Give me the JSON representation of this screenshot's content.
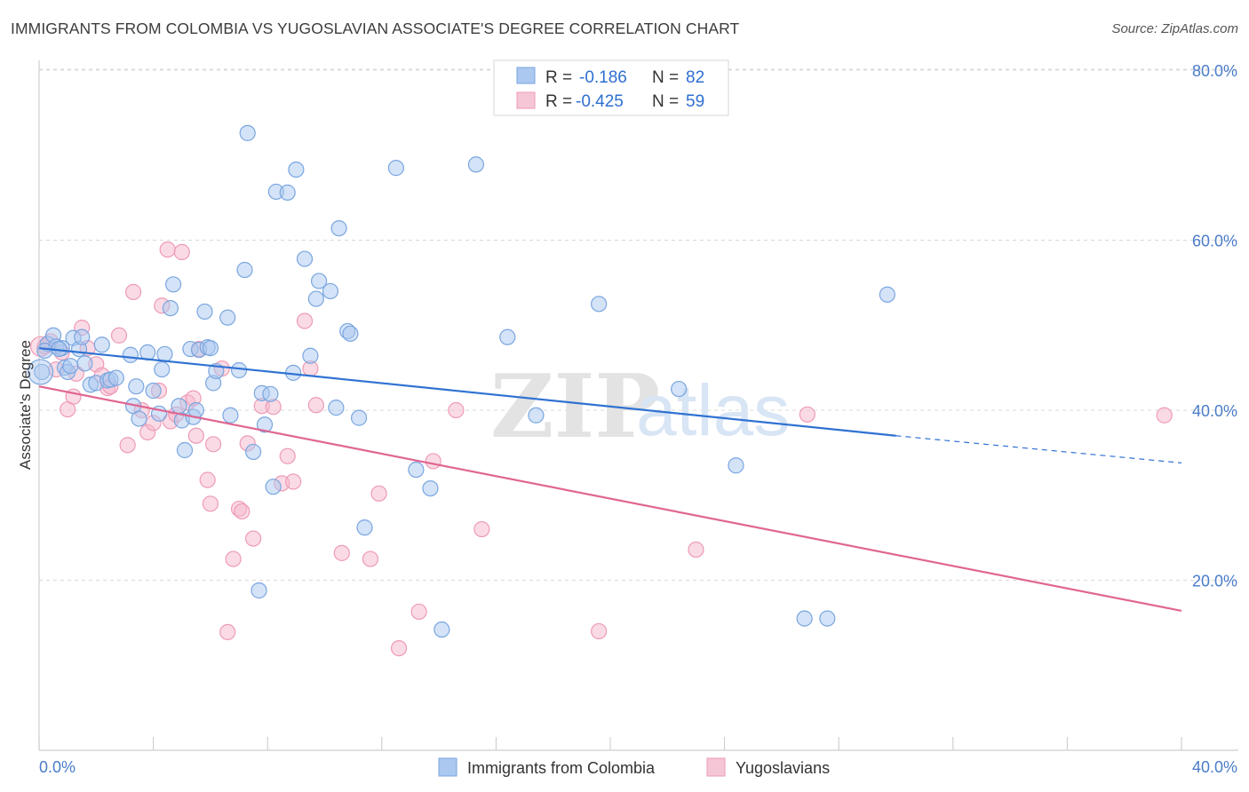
{
  "title": "IMMIGRANTS FROM COLOMBIA VS YUGOSLAVIAN ASSOCIATE'S DEGREE CORRELATION CHART",
  "source": "Source: ZipAtlas.com",
  "watermark": {
    "zip": "ZIP",
    "atlas": "atlas"
  },
  "colors": {
    "blue_fill": "#aac8f0",
    "blue_stroke": "#7aa6e0",
    "blue_line": "#2f72d2",
    "pink_fill": "#f5b8cc",
    "pink_stroke": "#ee9ab6",
    "pink_line": "#e06692",
    "tick_text": "#4a7cc9",
    "grid": "#d9d9d9"
  },
  "stats": [
    {
      "r_label": "R =",
      "r_value": "-0.186",
      "n_label": "N =",
      "n_value": "82"
    },
    {
      "r_label": "R =",
      "r_value": "-0.425",
      "n_label": "N =",
      "n_value": "59"
    }
  ],
  "chart_data": {
    "type": "scatter",
    "title": "IMMIGRANTS FROM COLOMBIA VS YUGOSLAVIAN ASSOCIATE'S DEGREE CORRELATION CHART",
    "xlabel": "",
    "ylabel": "Associate's Degree",
    "xlim": [
      0,
      40
    ],
    "ylim": [
      0,
      85
    ],
    "x_ticks": [
      "0.0%",
      "40.0%"
    ],
    "y_ticks": [
      {
        "value": 20,
        "label": "20.0%"
      },
      {
        "value": 40,
        "label": "40.0%"
      },
      {
        "value": 60,
        "label": "60.0%"
      },
      {
        "value": 80,
        "label": "80.0%"
      }
    ],
    "grid": true,
    "legend_position": "bottom",
    "series": [
      {
        "name": "Immigrants from Colombia",
        "color": "blue",
        "trend": {
          "x": [
            0,
            30
          ],
          "y": [
            47.3,
            37.0
          ],
          "dashed_to": [
            40,
            33.8
          ]
        },
        "points": [
          [
            0.1,
            44.5
          ],
          [
            0.3,
            47.8
          ],
          [
            0.5,
            48.8
          ],
          [
            0.6,
            47.5
          ],
          [
            0.8,
            47.3
          ],
          [
            0.9,
            45.0
          ],
          [
            1.0,
            44.5
          ],
          [
            1.2,
            48.5
          ],
          [
            1.4,
            47.2
          ],
          [
            1.5,
            48.6
          ],
          [
            1.6,
            45.5
          ],
          [
            1.8,
            43.0
          ],
          [
            2.0,
            43.2
          ],
          [
            2.2,
            47.7
          ],
          [
            2.4,
            43.5
          ],
          [
            2.5,
            43.6
          ],
          [
            3.2,
            46.5
          ],
          [
            3.4,
            42.8
          ],
          [
            3.3,
            40.5
          ],
          [
            3.5,
            39.0
          ],
          [
            3.8,
            46.8
          ],
          [
            4.0,
            42.3
          ],
          [
            4.2,
            39.6
          ],
          [
            4.3,
            44.8
          ],
          [
            4.4,
            46.6
          ],
          [
            4.6,
            52.0
          ],
          [
            4.7,
            54.8
          ],
          [
            4.9,
            40.5
          ],
          [
            5.0,
            38.8
          ],
          [
            5.1,
            35.3
          ],
          [
            5.3,
            47.2
          ],
          [
            5.4,
            39.2
          ],
          [
            5.6,
            47.1
          ],
          [
            5.8,
            51.6
          ],
          [
            5.9,
            47.4
          ],
          [
            6.1,
            43.2
          ],
          [
            6.2,
            44.6
          ],
          [
            6.6,
            50.9
          ],
          [
            6.7,
            39.4
          ],
          [
            7.0,
            44.7
          ],
          [
            7.2,
            56.5
          ],
          [
            7.3,
            72.6
          ],
          [
            7.5,
            35.1
          ],
          [
            7.7,
            18.8
          ],
          [
            7.8,
            42.0
          ],
          [
            7.9,
            38.3
          ],
          [
            8.1,
            41.9
          ],
          [
            8.2,
            31.0
          ],
          [
            8.3,
            65.7
          ],
          [
            8.7,
            65.6
          ],
          [
            8.9,
            44.4
          ],
          [
            9.0,
            68.3
          ],
          [
            9.3,
            57.8
          ],
          [
            9.5,
            46.4
          ],
          [
            9.7,
            53.1
          ],
          [
            9.8,
            55.2
          ],
          [
            10.2,
            54.0
          ],
          [
            10.4,
            40.3
          ],
          [
            10.5,
            61.4
          ],
          [
            10.8,
            49.3
          ],
          [
            10.9,
            49.0
          ],
          [
            11.2,
            39.1
          ],
          [
            11.4,
            26.2
          ],
          [
            12.5,
            68.5
          ],
          [
            13.2,
            33.0
          ],
          [
            13.7,
            30.8
          ],
          [
            14.1,
            14.2
          ],
          [
            15.3,
            68.9
          ],
          [
            16.4,
            48.6
          ],
          [
            17.4,
            39.4
          ],
          [
            19.6,
            52.5
          ],
          [
            22.4,
            42.5
          ],
          [
            24.4,
            33.5
          ],
          [
            26.8,
            15.5
          ],
          [
            27.6,
            15.5
          ],
          [
            29.7,
            53.6
          ],
          [
            6.0,
            47.3
          ],
          [
            2.7,
            43.8
          ],
          [
            0.2,
            47.0
          ],
          [
            0.7,
            47.2
          ],
          [
            1.1,
            45.2
          ],
          [
            5.5,
            40.0
          ]
        ]
      },
      {
        "name": "Yugoslavians",
        "color": "pink",
        "trend": {
          "x": [
            0,
            40
          ],
          "y": [
            42.8,
            16.4
          ]
        },
        "points": [
          [
            0.2,
            47.5
          ],
          [
            0.4,
            48.1
          ],
          [
            0.6,
            44.8
          ],
          [
            0.8,
            46.8
          ],
          [
            1.0,
            40.1
          ],
          [
            1.2,
            41.6
          ],
          [
            1.3,
            44.3
          ],
          [
            1.5,
            49.7
          ],
          [
            1.7,
            47.3
          ],
          [
            2.0,
            45.4
          ],
          [
            2.2,
            44.1
          ],
          [
            2.4,
            42.6
          ],
          [
            2.5,
            42.8
          ],
          [
            2.8,
            48.8
          ],
          [
            3.1,
            35.9
          ],
          [
            3.3,
            53.9
          ],
          [
            3.6,
            40.0
          ],
          [
            3.8,
            37.4
          ],
          [
            4.0,
            38.5
          ],
          [
            4.2,
            42.3
          ],
          [
            4.3,
            52.3
          ],
          [
            4.5,
            58.9
          ],
          [
            4.6,
            38.7
          ],
          [
            4.8,
            39.5
          ],
          [
            5.0,
            58.6
          ],
          [
            5.2,
            40.9
          ],
          [
            5.4,
            41.4
          ],
          [
            5.5,
            37.0
          ],
          [
            5.6,
            47.2
          ],
          [
            5.9,
            31.8
          ],
          [
            6.0,
            29.0
          ],
          [
            6.1,
            36.0
          ],
          [
            6.4,
            44.9
          ],
          [
            6.6,
            13.9
          ],
          [
            6.8,
            22.5
          ],
          [
            7.0,
            28.4
          ],
          [
            7.1,
            28.1
          ],
          [
            7.3,
            36.1
          ],
          [
            7.5,
            24.9
          ],
          [
            7.8,
            40.5
          ],
          [
            8.2,
            40.4
          ],
          [
            8.5,
            31.4
          ],
          [
            8.7,
            34.6
          ],
          [
            8.9,
            31.6
          ],
          [
            9.3,
            50.5
          ],
          [
            9.5,
            44.9
          ],
          [
            9.7,
            40.6
          ],
          [
            10.6,
            23.2
          ],
          [
            11.6,
            22.5
          ],
          [
            11.9,
            30.2
          ],
          [
            12.6,
            12.0
          ],
          [
            13.3,
            16.3
          ],
          [
            13.8,
            34.0
          ],
          [
            14.6,
            40.0
          ],
          [
            15.5,
            26.0
          ],
          [
            19.6,
            14.0
          ],
          [
            23.0,
            23.6
          ],
          [
            26.9,
            39.5
          ],
          [
            39.4,
            39.4
          ]
        ]
      }
    ]
  }
}
